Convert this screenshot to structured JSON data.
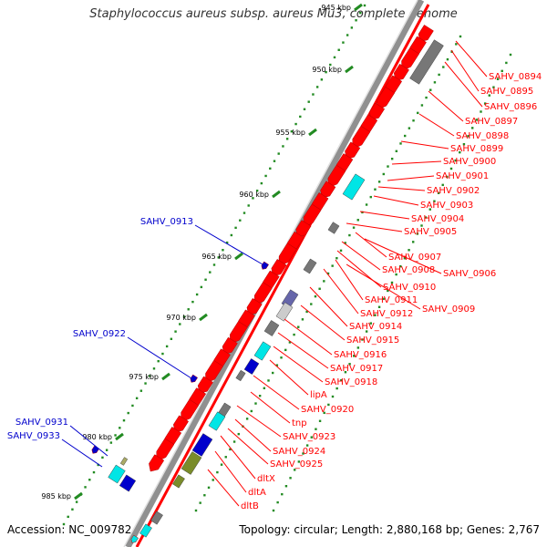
{
  "title": "Staphylococcus aureus subsp. aureus Mu3, complete genome",
  "footer": {
    "accession": "Accession: NC_009782",
    "info": "Topology: circular; Length: 2,880,168 bp; Genes: 2,767"
  },
  "colors": {
    "forward_cds": "#ff0000",
    "reverse_gene_label": "#0000cc",
    "tick": "#228b22",
    "backbone": "#909090",
    "blast_cyan": "#00e5e5",
    "blast_blue": "#0000cc",
    "blast_gray": "#777777",
    "blast_olive": "#7a8c2a"
  },
  "ruler": [
    {
      "label": "945 kbp"
    },
    {
      "label": "950 kbp"
    },
    {
      "label": "955 kbp"
    },
    {
      "label": "960 kbp"
    },
    {
      "label": "965 kbp"
    },
    {
      "label": "970 kbp"
    },
    {
      "label": "975 kbp"
    },
    {
      "label": "980 kbp"
    },
    {
      "label": "985 kbp"
    }
  ],
  "right_labels": [
    "SAHV_0894",
    "SAHV_0895",
    "SAHV_0896",
    "SAHV_0897",
    "SAHV_0898",
    "SAHV_0899",
    "SAHV_0900",
    "SAHV_0901",
    "SAHV_0902",
    "SAHV_0903",
    "SAHV_0904",
    "SAHV_0905",
    "SAHV_0907",
    "SAHV_0908",
    "SAHV_0906",
    "SAHV_0910",
    "SAHV_0911",
    "SAHV_0909",
    "SAHV_0912",
    "SAHV_0914",
    "SAHV_0915",
    "SAHV_0916",
    "SAHV_0917",
    "SAHV_0918",
    "lipA",
    "SAHV_0920",
    "tnp",
    "SAHV_0923",
    "SAHV_0924",
    "SAHV_0925",
    "dltX",
    "dltA",
    "dltB"
  ],
  "left_labels": [
    "SAHV_0913",
    "SAHV_0922",
    "SAHV_0931",
    "SAHV_0933"
  ]
}
